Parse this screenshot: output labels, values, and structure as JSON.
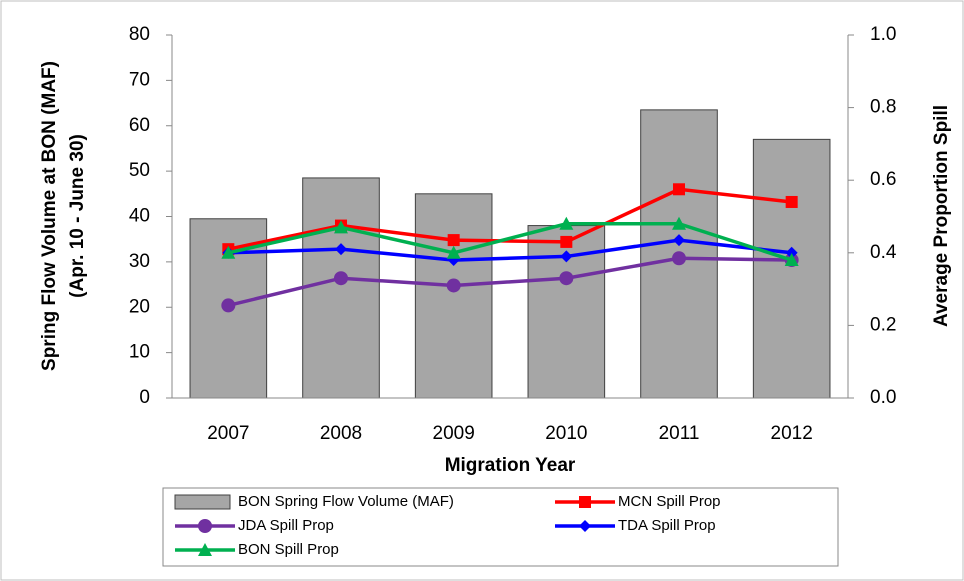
{
  "chart_data": {
    "type": "combo",
    "x_label": "Migration Year",
    "y_label": [
      "Spring Flow Volume at BON (MAF)",
      "(Apr. 10 - June 30)"
    ],
    "y2_label": "Average Proportion Spill",
    "categories": [
      "2007",
      "2008",
      "2009",
      "2010",
      "2011",
      "2012"
    ],
    "ylim": [
      0,
      80
    ],
    "yticks": [
      0,
      10,
      20,
      30,
      40,
      50,
      60,
      70,
      80
    ],
    "y2lim": [
      0,
      1
    ],
    "y2ticks": [
      {
        "value": 0,
        "label": "0.0"
      },
      {
        "value": 0.2,
        "label": "0.2"
      },
      {
        "value": 0.4,
        "label": "0.4"
      },
      {
        "value": 0.6,
        "label": "0.6"
      },
      {
        "value": 0.8,
        "label": "0.8"
      },
      {
        "value": 1,
        "label": "1.0"
      }
    ],
    "series": [
      {
        "name": "BON Spring Flow Volume (MAF)",
        "type": "bar",
        "color": "#a6a6a6",
        "values": [
          39.5,
          48.5,
          45,
          38,
          63.5,
          57
        ]
      },
      {
        "name": "MCN Spill Prop",
        "type": "line",
        "axis": "y2",
        "marker": "square",
        "color": "#ff0000",
        "values": [
          0.41,
          0.475,
          0.435,
          0.43,
          0.575,
          0.54
        ]
      },
      {
        "name": "JDA Spill Prop",
        "type": "line",
        "axis": "y2",
        "marker": "circle",
        "color": "#7030a0",
        "values": [
          0.255,
          0.33,
          0.31,
          0.33,
          0.385,
          0.38
        ]
      },
      {
        "name": "TDA Spill Prop",
        "type": "line",
        "axis": "y2",
        "marker": "diamond",
        "color": "#0000ff",
        "values": [
          0.4,
          0.41,
          0.38,
          0.39,
          0.435,
          0.4
        ]
      },
      {
        "name": "BON Spill Prop",
        "type": "line",
        "axis": "y2",
        "marker": "triangle",
        "color": "#00b050",
        "values": [
          0.4,
          0.47,
          0.4,
          0.48,
          0.48,
          0.38
        ]
      }
    ]
  }
}
